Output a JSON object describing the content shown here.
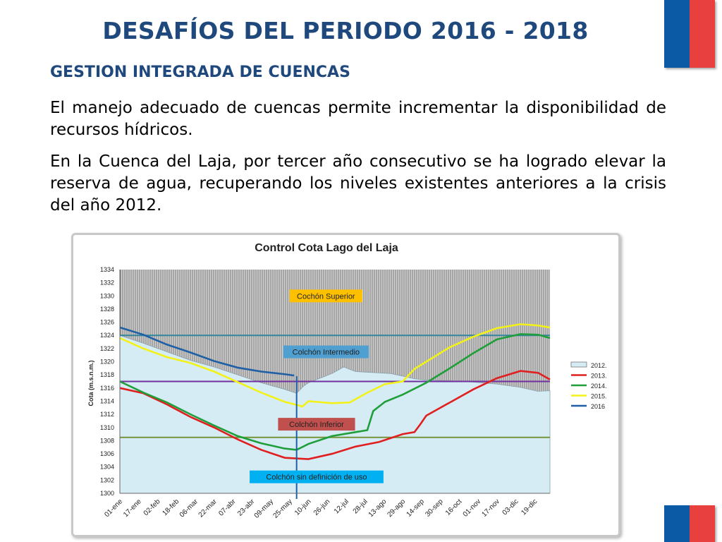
{
  "page": {
    "title": "DESAFÍOS DEL PERIODO 2016 - 2018",
    "subtitle": "GESTION INTEGRADA DE CUENCAS",
    "paragraph1": "El manejo adecuado de cuencas permite incrementar la disponibilidad de recursos hídricos.",
    "paragraph2": "En la Cuenca del Laja, por tercer año consecutivo se ha logrado elevar la reserva de agua, recuperando los niveles existentes anteriores a la crisis del año 2012."
  },
  "colors": {
    "flag_blue": "#0a5aa6",
    "flag_red": "#e8403e",
    "title": "#1f497d"
  },
  "chart_data": {
    "type": "line",
    "title": "Control Cota  Lago del Laja",
    "ylabel": "Cota (m.s.n.m.)",
    "xlabel": "",
    "ylim": [
      1300,
      1334
    ],
    "yticks": [
      1300,
      1302,
      1304,
      1306,
      1308,
      1310,
      1312,
      1314,
      1316,
      1318,
      1320,
      1322,
      1324,
      1326,
      1328,
      1330,
      1332,
      1334
    ],
    "xlim": [
      0,
      365
    ],
    "x_tick_labels": [
      "01-ene",
      "17-ene",
      "02-feb",
      "18-feb",
      "06-mar",
      "22-mar",
      "07-abr",
      "23-abr",
      "09-may",
      "25-may",
      "10-jun",
      "26-jun",
      "12-jul",
      "28-jul",
      "13-ago",
      "29-ago",
      "14-sep",
      "30-sep",
      "16-oct",
      "01-nov",
      "17-nov",
      "03-dic",
      "19-dic"
    ],
    "x_tick_days": [
      0,
      16,
      32,
      48,
      64,
      80,
      96,
      112,
      128,
      144,
      160,
      176,
      192,
      208,
      224,
      240,
      256,
      272,
      288,
      304,
      320,
      336,
      352
    ],
    "grid": false,
    "legend_position": "right",
    "reference_lines": [
      {
        "label": "Cochón Superior",
        "y": 1324,
        "color": "#31859c"
      },
      {
        "label": "Colchón Intermedio",
        "y": 1317,
        "color": "#7030a0"
      },
      {
        "label": "Colchón Inferior",
        "y": 1308.5,
        "color": "#77933c"
      }
    ],
    "zone_labels": [
      {
        "text": "Cochón Superior",
        "x": 148,
        "y": 1330,
        "bg": "#ffc000"
      },
      {
        "text": "Colchón Intermedio",
        "x": 148,
        "y": 1321.5,
        "bg": "#4f9fd0"
      },
      {
        "text": "Colchón Inferior",
        "x": 140,
        "y": 1310.5,
        "bg": "#c0504d"
      },
      {
        "text": "Colchón sin definición de uso",
        "x": 140,
        "y": 1302.5,
        "bg": "#00b0f0"
      }
    ],
    "vertical_marker": {
      "x": 150,
      "color": "#1f5fa5"
    },
    "series": [
      {
        "name": "2012.",
        "color": "#d6ecf5",
        "kind": "area",
        "x": [
          0,
          20,
          40,
          60,
          80,
          100,
          120,
          140,
          150,
          156,
          160,
          170,
          180,
          190,
          200,
          210,
          220,
          230,
          240,
          250,
          260,
          280,
          300,
          320,
          340,
          355,
          365
        ],
        "y": [
          1324,
          1322.8,
          1321.5,
          1320.2,
          1319.2,
          1318,
          1316.8,
          1315.8,
          1315.2,
          1316.3,
          1316.8,
          1317.5,
          1318.2,
          1319.2,
          1318.5,
          1318.4,
          1318.3,
          1318.2,
          1317.8,
          1317.4,
          1317.2,
          1317.1,
          1316.9,
          1316.6,
          1316.1,
          1315.5,
          1315.6
        ]
      },
      {
        "name": "2013.",
        "color": "#e02020",
        "kind": "line",
        "x": [
          0,
          20,
          40,
          60,
          80,
          100,
          120,
          140,
          160,
          180,
          200,
          220,
          240,
          250,
          255,
          260,
          280,
          300,
          320,
          340,
          355,
          365
        ],
        "y": [
          1316,
          1315.2,
          1313.5,
          1311.6,
          1310,
          1308.2,
          1306.6,
          1305.4,
          1305.2,
          1306,
          1307.1,
          1307.8,
          1309,
          1309.3,
          1310.5,
          1311.8,
          1313.8,
          1315.8,
          1317.5,
          1318.6,
          1318.3,
          1317.3
        ]
      },
      {
        "name": "2014.",
        "color": "#1f9e3a",
        "kind": "line",
        "x": [
          0,
          20,
          40,
          60,
          80,
          100,
          120,
          140,
          150,
          160,
          180,
          200,
          210,
          215,
          225,
          240,
          260,
          280,
          300,
          320,
          340,
          355,
          365
        ],
        "y": [
          1317,
          1315.3,
          1313.8,
          1312,
          1310.3,
          1308.7,
          1307.6,
          1306.8,
          1306.6,
          1307.5,
          1308.7,
          1309.3,
          1309.6,
          1312.5,
          1313.9,
          1315,
          1316.8,
          1319,
          1321.3,
          1323.4,
          1324.2,
          1324.1,
          1323.6
        ]
      },
      {
        "name": "2015.",
        "color": "#f2f21a",
        "kind": "line",
        "x": [
          0,
          20,
          40,
          60,
          80,
          100,
          120,
          140,
          155,
          160,
          180,
          195,
          210,
          225,
          240,
          250,
          260,
          280,
          300,
          320,
          340,
          355,
          365
        ],
        "y": [
          1323.6,
          1322,
          1320.7,
          1319.8,
          1318.5,
          1316.9,
          1315.3,
          1313.9,
          1313.2,
          1314,
          1313.7,
          1313.8,
          1315.3,
          1316.6,
          1317,
          1318.9,
          1320,
          1322.2,
          1323.8,
          1325.1,
          1325.7,
          1325.5,
          1325.2
        ]
      },
      {
        "name": "2016",
        "color": "#1f5fa5",
        "kind": "line",
        "x": [
          0,
          20,
          40,
          60,
          80,
          100,
          120,
          140,
          148
        ],
        "y": [
          1325.2,
          1324.1,
          1322.6,
          1321.4,
          1320.1,
          1319.1,
          1318.5,
          1318.1,
          1317.9
        ]
      }
    ]
  }
}
